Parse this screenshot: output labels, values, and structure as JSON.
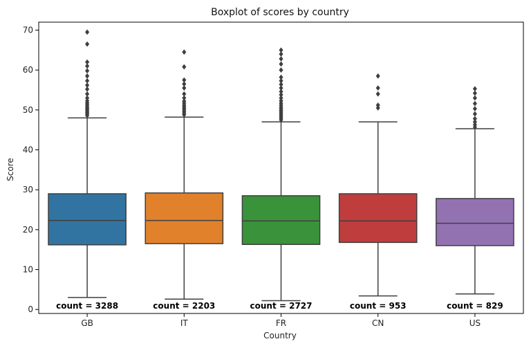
{
  "chart_data": {
    "type": "box",
    "title": "Boxplot of scores by country",
    "xlabel": "Country",
    "ylabel": "Score",
    "ylim": [
      -1,
      72
    ],
    "yticks": [
      0,
      10,
      20,
      30,
      40,
      50,
      60,
      70
    ],
    "grid": false,
    "categories": [
      "GB",
      "IT",
      "FR",
      "CN",
      "US"
    ],
    "boxes": [
      {
        "category": "GB",
        "color": "#3274a1",
        "whisker_low": 3.0,
        "q1": 16.2,
        "median": 22.3,
        "q3": 29.0,
        "whisker_high": 48.0,
        "outliers": [
          48.6,
          49.0,
          49.3,
          49.6,
          50.0,
          50.3,
          50.6,
          51.0,
          51.4,
          51.8,
          52.3,
          53.0,
          54.0,
          55.2,
          56.2,
          57.3,
          58.5,
          59.8,
          61.0,
          62.0,
          66.5,
          69.5
        ],
        "count_label": "count = 3288"
      },
      {
        "category": "IT",
        "color": "#e1812c",
        "whisker_low": 2.6,
        "q1": 16.5,
        "median": 22.3,
        "q3": 29.2,
        "whisker_high": 48.2,
        "outliers": [
          48.8,
          49.2,
          49.6,
          50.0,
          50.4,
          50.8,
          51.2,
          51.7,
          52.2,
          53.0,
          54.0,
          55.5,
          56.5,
          57.5,
          60.8,
          64.5
        ],
        "count_label": "count = 2203"
      },
      {
        "category": "FR",
        "color": "#3a923a",
        "whisker_low": 2.2,
        "q1": 16.3,
        "median": 22.2,
        "q3": 28.5,
        "whisker_high": 47.0,
        "outliers": [
          47.5,
          47.9,
          48.3,
          48.7,
          49.1,
          49.5,
          49.9,
          50.3,
          50.7,
          51.2,
          51.7,
          52.3,
          53.0,
          53.8,
          54.6,
          55.5,
          56.4,
          57.3,
          58.2,
          60.0,
          61.5,
          62.8,
          64.0,
          65.0
        ],
        "count_label": "count = 2727"
      },
      {
        "category": "CN",
        "color": "#c03d3e",
        "whisker_low": 3.4,
        "q1": 16.8,
        "median": 22.2,
        "q3": 29.0,
        "whisker_high": 47.0,
        "outliers": [
          50.5,
          51.2,
          54.0,
          55.5,
          58.5
        ],
        "count_label": "count = 953"
      },
      {
        "category": "US",
        "color": "#9372b2",
        "whisker_low": 3.9,
        "q1": 16.0,
        "median": 21.6,
        "q3": 27.8,
        "whisker_high": 45.3,
        "outliers": [
          45.7,
          46.3,
          47.0,
          47.8,
          49.0,
          50.3,
          51.6,
          53.0,
          54.2,
          55.3
        ],
        "count_label": "count = 829"
      }
    ],
    "count_label_y": 0.9,
    "line_color": "#3f3f3f"
  }
}
